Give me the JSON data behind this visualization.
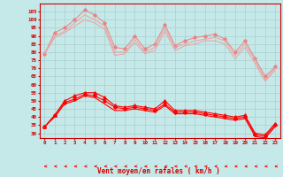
{
  "x": [
    0,
    1,
    2,
    3,
    4,
    5,
    6,
    7,
    8,
    9,
    10,
    11,
    12,
    13,
    14,
    15,
    16,
    17,
    18,
    19,
    20,
    21,
    22,
    23
  ],
  "rafales_top": [
    79,
    92,
    95,
    100,
    106,
    103,
    98,
    83,
    82,
    90,
    82,
    85,
    97,
    84,
    87,
    89,
    90,
    91,
    88,
    80,
    87,
    76,
    65,
    71
  ],
  "rafales_mid": [
    79,
    90,
    93,
    98,
    103,
    100,
    96,
    80,
    80,
    88,
    80,
    83,
    95,
    83,
    85,
    87,
    88,
    89,
    87,
    78,
    85,
    75,
    63,
    70
  ],
  "rafales_bot": [
    79,
    89,
    92,
    96,
    100,
    98,
    94,
    78,
    79,
    86,
    79,
    81,
    93,
    81,
    84,
    85,
    87,
    87,
    85,
    76,
    83,
    73,
    62,
    69
  ],
  "moyen_top": [
    34,
    41,
    50,
    53,
    55,
    55,
    52,
    47,
    46,
    47,
    46,
    45,
    50,
    44,
    44,
    44,
    43,
    42,
    41,
    40,
    41,
    30,
    29,
    36
  ],
  "moyen_mid": [
    34,
    41,
    49,
    51,
    54,
    53,
    50,
    46,
    45,
    46,
    45,
    44,
    48,
    43,
    43,
    43,
    42,
    41,
    40,
    39,
    40,
    29,
    28,
    35
  ],
  "moyen_bot": [
    34,
    40,
    48,
    50,
    53,
    52,
    48,
    44,
    44,
    45,
    44,
    43,
    47,
    42,
    42,
    42,
    41,
    40,
    39,
    38,
    39,
    28,
    27,
    34
  ],
  "bg_color": "#c5e8e8",
  "grid_color": "#aacece",
  "line_color_rafales_top": "#f08080",
  "line_color_rafales_bot": "#f0a0a0",
  "line_color_moyen": "#ff0000",
  "xlabel": "Vent moyen/en rafales ( km/h )",
  "xlabel_color": "#cc0000",
  "tick_color": "#cc0000",
  "yticks": [
    30,
    35,
    40,
    45,
    50,
    55,
    60,
    65,
    70,
    75,
    80,
    85,
    90,
    95,
    100,
    105
  ],
  "ylim": [
    27,
    110
  ],
  "xlim": [
    -0.5,
    23.5
  ]
}
